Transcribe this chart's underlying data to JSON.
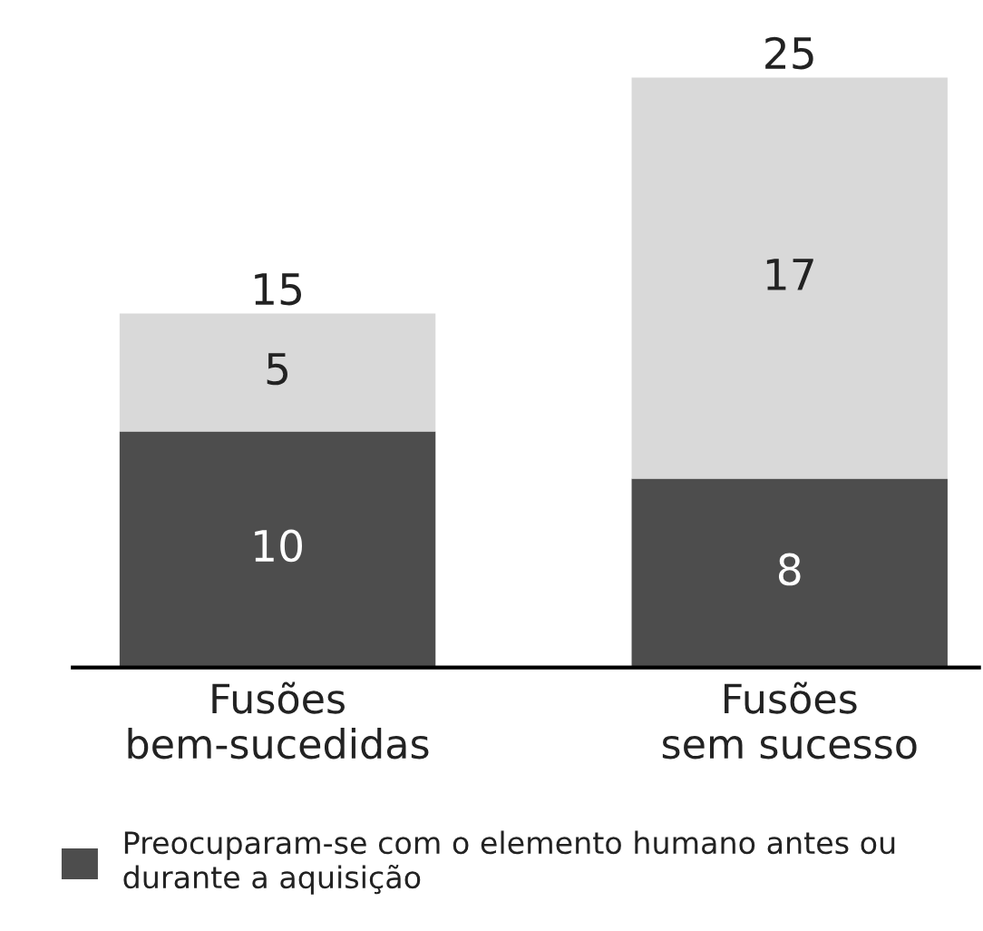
{
  "chart_data": {
    "type": "bar",
    "stacked": true,
    "data_labels": true,
    "grid": false,
    "legend": "bottom",
    "tick_labels": "x",
    "categories": [
      "Fusões\nbem-sucedidas",
      "Fusões\nsem sucesso"
    ],
    "series": [
      {
        "name": "Preocuparam-se com o elemento humano antes ou\ndurante a aquisição",
        "color": "#4d4d4d",
        "values": [
          10,
          8
        ]
      },
      {
        "color": "#d9d9d9",
        "values": [
          5,
          17
        ]
      }
    ],
    "totals": [
      "15",
      "25"
    ]
  }
}
